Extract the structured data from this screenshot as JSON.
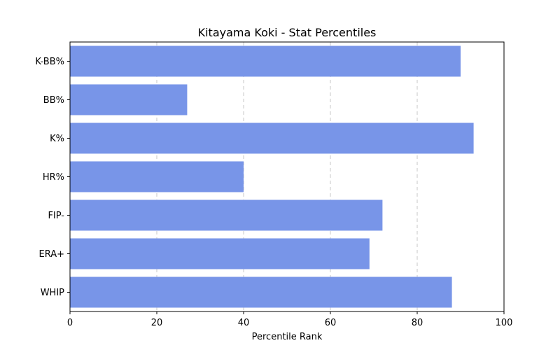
{
  "chart_data": {
    "type": "bar",
    "orientation": "horizontal",
    "title": "Kitayama Koki - Stat Percentiles",
    "xlabel": "Percentile Rank",
    "ylabel": "",
    "xlim": [
      0,
      100
    ],
    "xticks": [
      0,
      20,
      40,
      60,
      80,
      100
    ],
    "grid": "x-dashed",
    "bar_color": "#7895e8",
    "categories": [
      "K-BB%",
      "BB%",
      "K%",
      "HR%",
      "FIP-",
      "ERA+",
      "WHIP"
    ],
    "values": [
      90,
      27,
      93,
      40,
      72,
      69,
      88
    ]
  }
}
